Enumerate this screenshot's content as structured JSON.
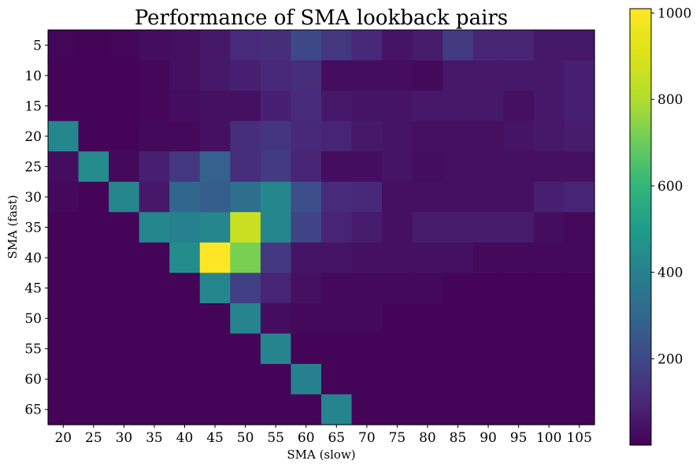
{
  "chart_data": {
    "type": "heatmap",
    "title": "Performance of SMA lookback pairs",
    "xlabel": "SMA (slow)",
    "ylabel": "SMA (fast)",
    "x_categories": [
      "20",
      "25",
      "30",
      "35",
      "40",
      "45",
      "50",
      "55",
      "60",
      "65",
      "70",
      "75",
      "80",
      "85",
      "90",
      "95",
      "100",
      "105"
    ],
    "y_categories": [
      "5",
      "10",
      "15",
      "20",
      "25",
      "30",
      "35",
      "40",
      "45",
      "50",
      "55",
      "60",
      "65"
    ],
    "colormap": "viridis",
    "colorbar": {
      "min": 0,
      "max": 1010,
      "ticks": [
        200,
        400,
        600,
        800,
        1000
      ]
    },
    "values": [
      [
        12,
        10,
        12,
        30,
        40,
        60,
        110,
        120,
        200,
        150,
        100,
        50,
        70,
        160,
        90,
        90,
        60,
        60
      ],
      [
        10,
        10,
        10,
        15,
        40,
        60,
        80,
        100,
        120,
        30,
        30,
        30,
        20,
        60,
        60,
        60,
        60,
        80
      ],
      [
        10,
        10,
        10,
        15,
        30,
        40,
        40,
        80,
        110,
        60,
        50,
        50,
        60,
        60,
        60,
        40,
        60,
        80
      ],
      [
        420,
        10,
        10,
        20,
        20,
        40,
        120,
        140,
        100,
        90,
        60,
        50,
        40,
        40,
        40,
        50,
        60,
        70
      ],
      [
        30,
        440,
        20,
        80,
        150,
        280,
        120,
        160,
        90,
        30,
        30,
        50,
        30,
        40,
        40,
        40,
        40,
        40
      ],
      [
        20,
        10,
        420,
        60,
        300,
        270,
        330,
        420,
        220,
        110,
        100,
        40,
        40,
        40,
        40,
        40,
        80,
        90
      ],
      [
        10,
        10,
        10,
        420,
        400,
        420,
        860,
        420,
        190,
        90,
        70,
        40,
        70,
        70,
        70,
        70,
        30,
        20
      ],
      [
        10,
        10,
        10,
        10,
        440,
        1010,
        720,
        150,
        50,
        50,
        40,
        40,
        40,
        40,
        20,
        20,
        20,
        20
      ],
      [
        10,
        10,
        10,
        10,
        10,
        420,
        170,
        90,
        40,
        20,
        20,
        20,
        20,
        10,
        10,
        10,
        10,
        10
      ],
      [
        10,
        10,
        10,
        10,
        10,
        10,
        410,
        30,
        20,
        20,
        20,
        10,
        10,
        10,
        10,
        10,
        10,
        10
      ],
      [
        10,
        10,
        10,
        10,
        10,
        10,
        10,
        410,
        10,
        10,
        10,
        10,
        10,
        10,
        10,
        10,
        10,
        10
      ],
      [
        10,
        10,
        10,
        10,
        10,
        10,
        10,
        10,
        400,
        10,
        10,
        10,
        10,
        10,
        10,
        10,
        10,
        10
      ],
      [
        10,
        10,
        10,
        10,
        10,
        10,
        10,
        10,
        10,
        410,
        10,
        10,
        10,
        10,
        10,
        10,
        10,
        10
      ]
    ]
  }
}
